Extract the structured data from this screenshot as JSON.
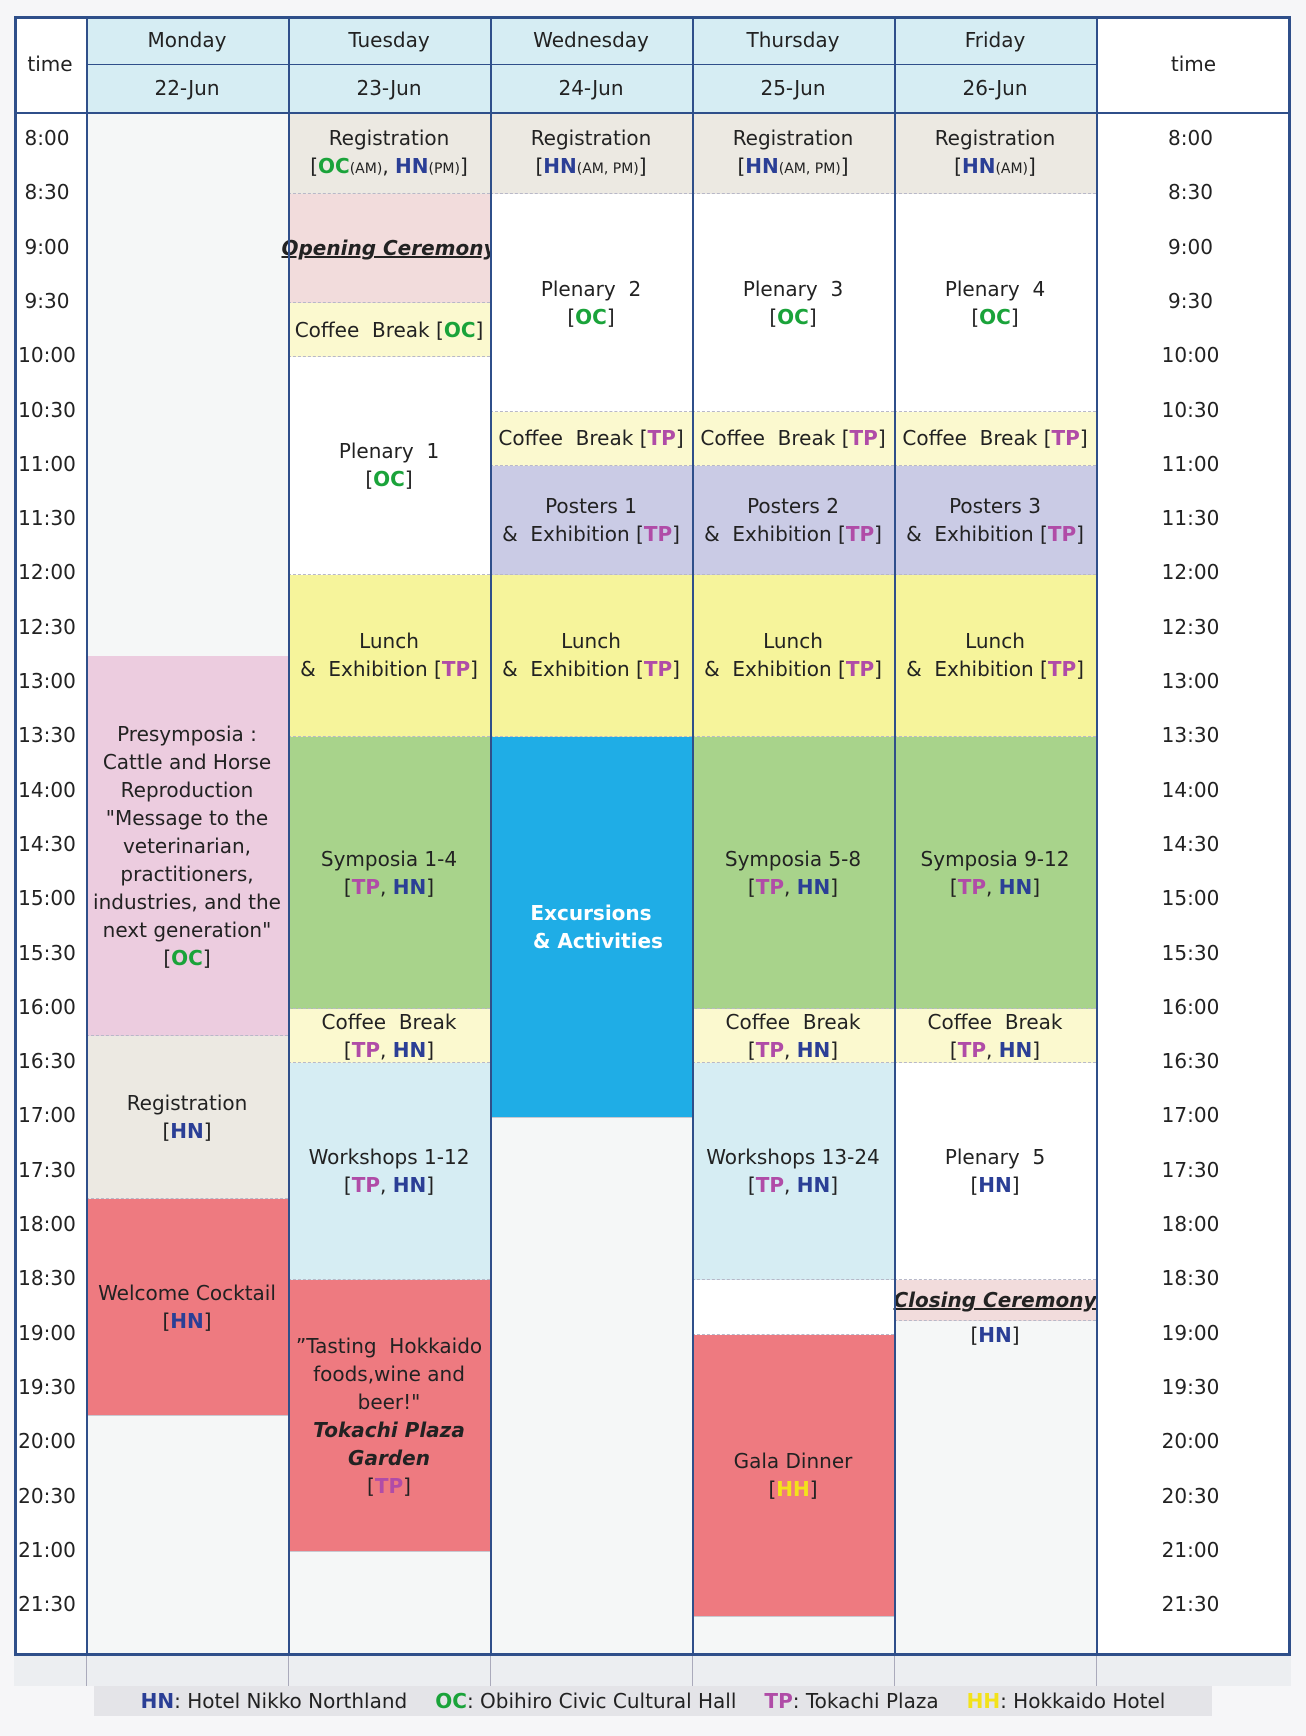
{
  "time_header": "time",
  "days": [
    {
      "name": "Monday",
      "date": "22-Jun"
    },
    {
      "name": "Tuesday",
      "date": "23-Jun"
    },
    {
      "name": "Wednesday",
      "date": "24-Jun"
    },
    {
      "name": "Thursday",
      "date": "25-Jun"
    },
    {
      "name": "Friday",
      "date": "26-Jun"
    }
  ],
  "times": [
    "8:00",
    "8:30",
    "9:00",
    "9:30",
    "10:00",
    "10:30",
    "11:00",
    "11:30",
    "12:00",
    "12:30",
    "13:00",
    "13:30",
    "14:00",
    "14:30",
    "15:00",
    "15:30",
    "16:00",
    "16:30",
    "17:00",
    "17:30",
    "18:00",
    "18:30",
    "19:00",
    "19:30",
    "20:00",
    "20:30",
    "21:00",
    "21:30"
  ],
  "colors": {
    "registration": "#ece9e2",
    "opening": "#f2dcdc",
    "coffee": "#fbf9cf",
    "plenary": "#ffffff",
    "posters": "#cacbe5",
    "lunch": "#f6f49b",
    "symposia": "#a8d38b",
    "excursion": "#1fade6",
    "presymposia": "#ecccdf",
    "workshops": "#d6edf3",
    "dinner": "#ee7a80",
    "closing": "#f2dcdc",
    "hn": "#2b3f96",
    "oc": "#1aa33a",
    "tp": "#b04ca7",
    "hh": "#f3e21a"
  },
  "events": [
    {
      "day": 0,
      "start": 10,
      "end": 17,
      "color": "presymposia",
      "lines": [
        "Presymposia :",
        "Cattle and Horse",
        "Reproduction",
        "\"Message to the",
        "veterinarian,",
        "practitioners,",
        "industries, and the",
        "next generation\"",
        "[[OC]]"
      ]
    },
    {
      "day": 0,
      "start": 17,
      "end": 20,
      "color": "registration",
      "lines": [
        "Registration",
        "[[HN]]"
      ]
    },
    {
      "day": 0,
      "start": 20,
      "end": 24,
      "color": "dinner",
      "lines": [
        "Welcome Cocktail",
        "[[HN]]"
      ]
    },
    {
      "day": 1,
      "start": 0,
      "end": 1.5,
      "color": "registration",
      "lines": [
        "Registration",
        "[[OC]]{(AM)}, [[HN]]{(PM)}"
      ]
    },
    {
      "day": 1,
      "start": 1.5,
      "end": 3.5,
      "color": "opening",
      "style": "iu",
      "lines": [
        "Opening Ceremony"
      ]
    },
    {
      "day": 1,
      "start": 3.5,
      "end": 4.5,
      "color": "coffee",
      "lines": [
        "Coffee  Break [[OC]]"
      ]
    },
    {
      "day": 1,
      "start": 4.5,
      "end": 8.5,
      "color": "plenary",
      "lines": [
        "Plenary  1",
        "[[OC]]"
      ]
    },
    {
      "day": 1,
      "start": 8.5,
      "end": 11.5,
      "color": "lunch",
      "lines": [
        "Lunch",
        "&  Exhibition [[TP]]"
      ]
    },
    {
      "day": 1,
      "start": 11.5,
      "end": 16.5,
      "color": "symposia",
      "lines": [
        "Symposia 1-4",
        "[[TP]], [[HN]]"
      ]
    },
    {
      "day": 1,
      "start": 16.5,
      "end": 17.5,
      "color": "coffee",
      "lines": [
        "Coffee  Break",
        "[[TP]], [[HN]]"
      ]
    },
    {
      "day": 1,
      "start": 17.5,
      "end": 21.5,
      "color": "workshops",
      "lines": [
        "Workshops 1-12",
        "[[TP]], [[HN]]"
      ]
    },
    {
      "day": 1,
      "start": 21.5,
      "end": 26.5,
      "color": "dinner",
      "lines": [
        "”Tasting  Hokkaido",
        "foods,wine and",
        "beer!\"",
        "{{Tokachi Plaza}}",
        "{{Garden}}",
        "[[TP]]"
      ]
    },
    {
      "day": 2,
      "start": 0,
      "end": 1.5,
      "color": "registration",
      "lines": [
        "Registration",
        "[[HN]]{(AM, PM)}"
      ]
    },
    {
      "day": 2,
      "start": 1.5,
      "end": 5.5,
      "color": "plenary",
      "lines": [
        "Plenary  2",
        "[[OC]]"
      ]
    },
    {
      "day": 2,
      "start": 5.5,
      "end": 6.5,
      "color": "coffee",
      "lines": [
        "Coffee  Break [[TP]]"
      ]
    },
    {
      "day": 2,
      "start": 6.5,
      "end": 8.5,
      "color": "posters",
      "lines": [
        "Posters 1",
        "&  Exhibition [[TP]]"
      ]
    },
    {
      "day": 2,
      "start": 8.5,
      "end": 11.5,
      "color": "lunch",
      "lines": [
        "Lunch",
        "&  Exhibition [[TP]]"
      ]
    },
    {
      "day": 2,
      "start": 11.5,
      "end": 18.5,
      "color": "excursion",
      "style": "w",
      "lines": [
        "Excursions",
        "  & Activities"
      ]
    },
    {
      "day": 3,
      "start": 0,
      "end": 1.5,
      "color": "registration",
      "lines": [
        "Registration",
        "[[HN]]{(AM, PM)}"
      ]
    },
    {
      "day": 3,
      "start": 1.5,
      "end": 5.5,
      "color": "plenary",
      "lines": [
        "Plenary  3",
        "[[OC]]"
      ]
    },
    {
      "day": 3,
      "start": 5.5,
      "end": 6.5,
      "color": "coffee",
      "lines": [
        "Coffee  Break [[TP]]"
      ]
    },
    {
      "day": 3,
      "start": 6.5,
      "end": 8.5,
      "color": "posters",
      "lines": [
        "Posters 2",
        "&  Exhibition [[TP]]"
      ]
    },
    {
      "day": 3,
      "start": 8.5,
      "end": 11.5,
      "color": "lunch",
      "lines": [
        "Lunch",
        "&  Exhibition [[TP]]"
      ]
    },
    {
      "day": 3,
      "start": 11.5,
      "end": 16.5,
      "color": "symposia",
      "lines": [
        "Symposia 5-8",
        "[[TP]], [[HN]]"
      ]
    },
    {
      "day": 3,
      "start": 16.5,
      "end": 17.5,
      "color": "coffee",
      "lines": [
        "Coffee  Break",
        "[[TP]], [[HN]]"
      ]
    },
    {
      "day": 3,
      "start": 17.5,
      "end": 21.5,
      "color": "workshops",
      "lines": [
        "Workshops 13-24",
        "[[TP]], [[HN]]"
      ]
    },
    {
      "day": 3,
      "start": 21.5,
      "end": 22.5,
      "color": "plenary",
      "lines": []
    },
    {
      "day": 3,
      "start": 22.5,
      "end": 27.7,
      "color": "dinner",
      "lines": [
        "Gala Dinner",
        "[[HH]]"
      ]
    },
    {
      "day": 4,
      "start": 0,
      "end": 1.5,
      "color": "registration",
      "lines": [
        "Registration",
        "[[HN]]{(AM)}"
      ]
    },
    {
      "day": 4,
      "start": 1.5,
      "end": 5.5,
      "color": "plenary",
      "lines": [
        "Plenary  4",
        "[[OC]]"
      ]
    },
    {
      "day": 4,
      "start": 5.5,
      "end": 6.5,
      "color": "coffee",
      "lines": [
        "Coffee  Break [[TP]]"
      ]
    },
    {
      "day": 4,
      "start": 6.5,
      "end": 8.5,
      "color": "posters",
      "lines": [
        "Posters 3",
        "&  Exhibition [[TP]]"
      ]
    },
    {
      "day": 4,
      "start": 8.5,
      "end": 11.5,
      "color": "lunch",
      "lines": [
        "Lunch",
        "&  Exhibition [[TP]]"
      ]
    },
    {
      "day": 4,
      "start": 11.5,
      "end": 16.5,
      "color": "symposia",
      "lines": [
        "Symposia 9-12",
        "[[TP]], [[HN]]"
      ]
    },
    {
      "day": 4,
      "start": 16.5,
      "end": 17.5,
      "color": "coffee",
      "lines": [
        "Coffee  Break",
        "[[TP]], [[HN]]"
      ]
    },
    {
      "day": 4,
      "start": 17.5,
      "end": 21.5,
      "color": "plenary",
      "lines": [
        "Plenary  5",
        "[[HN]]"
      ]
    },
    {
      "day": 4,
      "start": 21.5,
      "end": 22.25,
      "color": "closing",
      "style": "iu",
      "lines": [
        "Closing Ceremony"
      ]
    },
    {
      "day": 4,
      "start": 22.25,
      "end": 22.25,
      "color": "none",
      "lines": [
        "[[HN]]"
      ],
      "free": true
    }
  ],
  "legend": [
    {
      "code": "HN",
      "label": ": Hotel Nikko Northland"
    },
    {
      "code": "OC",
      "label": ": Obihiro Civic Cultural Hall"
    },
    {
      "code": "TP",
      "label": ": Tokachi Plaza"
    },
    {
      "code": "HH",
      "label": ": Hokkaido Hotel"
    }
  ]
}
